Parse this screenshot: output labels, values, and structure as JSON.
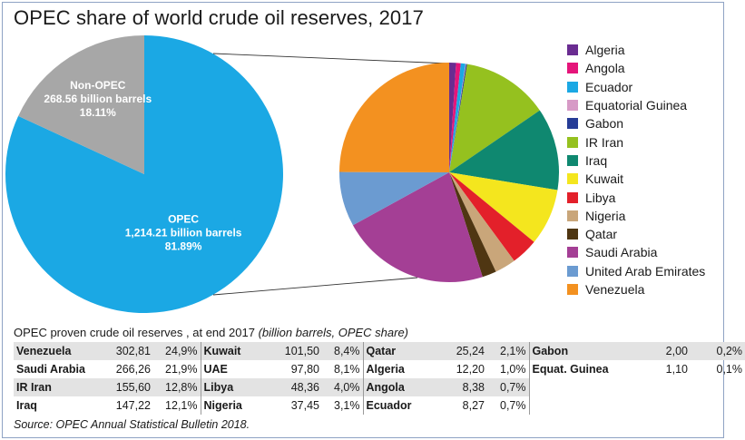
{
  "chart_data": [
    {
      "type": "pie",
      "title": "OPEC share of world crude oil reserves, 2017",
      "slices": [
        {
          "label": "OPEC",
          "value": 1214.21,
          "value_text": "1,214.21 billion barrels",
          "share_text": "81.89%",
          "color": "#1ba8e4"
        },
        {
          "label": "Non-OPEC",
          "value": 268.56,
          "value_text": "268.56 billion barrels",
          "share_text": "18.11%",
          "color": "#a7a7a7"
        }
      ]
    },
    {
      "type": "pie",
      "slices": [
        {
          "label": "Algeria",
          "value": 12.2,
          "color": "#6a2c91"
        },
        {
          "label": "Angola",
          "value": 8.38,
          "color": "#e5157a"
        },
        {
          "label": "Ecuador",
          "value": 8.27,
          "color": "#1ba8e4"
        },
        {
          "label": "Equatorial Guinea",
          "value": 1.1,
          "color": "#d79ac6"
        },
        {
          "label": "Gabon",
          "value": 2.0,
          "color": "#263c96"
        },
        {
          "label": "IR Iran",
          "value": 155.6,
          "color": "#95c11f"
        },
        {
          "label": "Iraq",
          "value": 147.22,
          "color": "#0f8870"
        },
        {
          "label": "Kuwait",
          "value": 101.5,
          "color": "#f4e61e"
        },
        {
          "label": "Libya",
          "value": 48.36,
          "color": "#e3202a"
        },
        {
          "label": "Nigeria",
          "value": 37.45,
          "color": "#c9a67a"
        },
        {
          "label": "Qatar",
          "value": 25.24,
          "color": "#4f3612"
        },
        {
          "label": "Saudi Arabia",
          "value": 266.26,
          "color": "#a43f95"
        },
        {
          "label": "United Arab Emirates",
          "value": 97.8,
          "color": "#6b9bd1"
        },
        {
          "label": "Venezuela",
          "value": 302.81,
          "color": "#f39120"
        }
      ]
    }
  ],
  "table": {
    "caption": "OPEC proven crude oil reserves , at end 2017",
    "caption_note": "(billion barrels, OPEC share)",
    "rows": [
      [
        [
          "Venezuela",
          "302,81",
          "24,9%"
        ],
        [
          "Kuwait",
          "101,50",
          "8,4%"
        ],
        [
          "Qatar",
          "25,24",
          "2,1%"
        ],
        [
          "Gabon",
          "2,00",
          "0,2%"
        ]
      ],
      [
        [
          "Saudi Arabia",
          "266,26",
          "21,9%"
        ],
        [
          "UAE",
          "97,80",
          "8,1%"
        ],
        [
          "Algeria",
          "12,20",
          "1,0%"
        ],
        [
          "Equat. Guinea",
          "1,10",
          "0,1%"
        ]
      ],
      [
        [
          "IR Iran",
          "155,60",
          "12,8%"
        ],
        [
          "Libya",
          "48,36",
          "4,0%"
        ],
        [
          "Angola",
          "8,38",
          "0,7%"
        ],
        null
      ],
      [
        [
          "Iraq",
          "147,22",
          "12,1%"
        ],
        [
          "Nigeria",
          "37,45",
          "3,1%"
        ],
        [
          "Ecuador",
          "8,27",
          "0,7%"
        ],
        null
      ]
    ]
  },
  "source": "Source: OPEC Annual Statistical Bulletin 2018."
}
